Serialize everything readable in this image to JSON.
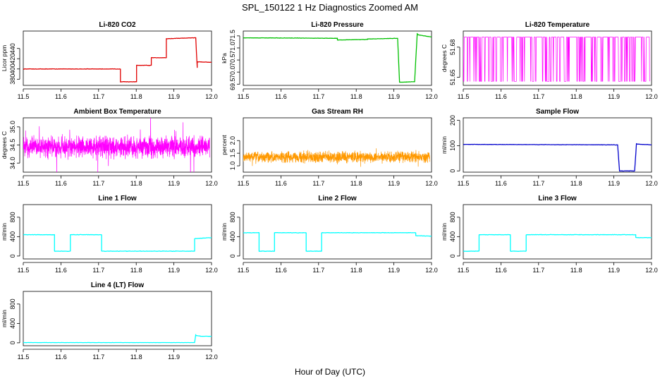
{
  "figure": {
    "title": "SPL_150122  1 Hz Diagnostics Zoomed AM",
    "xlabel": "Hour of Day (UTC)"
  },
  "chart_data": [
    {
      "type": "line",
      "title": "Li-820 CO2",
      "ylabel": "Licor ppm",
      "color": "#e00000",
      "xlim": [
        11.5,
        12.0
      ],
      "ylim": [
        368,
        474
      ],
      "xticks": [
        "11.5",
        "11.6",
        "11.7",
        "11.8",
        "11.9",
        "12.0"
      ],
      "yticks": [
        "380",
        "400",
        "420",
        "440"
      ],
      "noise": 0.6,
      "segments": [
        {
          "x": [
            11.5,
            11.758
          ],
          "y": [
            400,
            400
          ]
        },
        {
          "x": [
            11.758,
            11.801
          ],
          "y": [
            375,
            375
          ]
        },
        {
          "x": [
            11.801,
            11.84
          ],
          "y": [
            407,
            407
          ]
        },
        {
          "x": [
            11.84,
            11.88
          ],
          "y": [
            422,
            422
          ]
        },
        {
          "x": [
            11.88,
            11.958
          ],
          "y": [
            459,
            461
          ]
        },
        {
          "x": [
            11.958,
            11.962
          ],
          "y": [
            461,
            403
          ]
        },
        {
          "x": [
            11.962,
            12.0
          ],
          "y": [
            414,
            413
          ]
        }
      ]
    },
    {
      "type": "line",
      "title": "Li-820 Pressure",
      "ylabel": "kPa",
      "color": "#00c000",
      "xlim": [
        11.5,
        12.0
      ],
      "ylim": [
        69.45,
        71.7
      ],
      "xticks": [
        "11.5",
        "11.6",
        "11.7",
        "11.8",
        "11.9",
        "12.0"
      ],
      "yticks": [
        "69.5",
        "70.0",
        "70.5",
        "71.0",
        "71.5"
      ],
      "noise": 0.01,
      "segments": [
        {
          "x": [
            11.5,
            11.75
          ],
          "y": [
            71.42,
            71.4
          ]
        },
        {
          "x": [
            11.75,
            11.83
          ],
          "y": [
            71.33,
            71.35
          ]
        },
        {
          "x": [
            11.83,
            11.91
          ],
          "y": [
            71.37,
            71.4
          ]
        },
        {
          "x": [
            11.91,
            11.915
          ],
          "y": [
            71.4,
            69.6
          ]
        },
        {
          "x": [
            11.915,
            11.955
          ],
          "y": [
            69.58,
            69.6
          ]
        },
        {
          "x": [
            11.955,
            11.962
          ],
          "y": [
            69.6,
            71.6
          ]
        },
        {
          "x": [
            11.962,
            12.0
          ],
          "y": [
            71.55,
            71.45
          ]
        }
      ]
    },
    {
      "type": "line",
      "title": "Li-820 Temperature",
      "ylabel": "degrees C",
      "color": "#ff00ff",
      "xlim": [
        11.5,
        12.0
      ],
      "ylim": [
        51.642,
        51.696
      ],
      "xticks": [
        "11.5",
        "11.6",
        "11.7",
        "11.8",
        "11.9",
        "12.0"
      ],
      "yticks": [
        "51.65",
        "51.68"
      ],
      "levels": [
        51.646,
        51.69
      ],
      "range": [
        11.5,
        11.995
      ],
      "upper_share": 0.5
    },
    {
      "type": "line",
      "title": "Ambient Box Temperature",
      "ylabel": "degrees C",
      "color": "#ff00ff",
      "xlim": [
        11.5,
        12.0
      ],
      "ylim": [
        33.75,
        35.25
      ],
      "xticks": [
        "11.5",
        "11.6",
        "11.7",
        "11.8",
        "11.9",
        "12.0"
      ],
      "yticks": [
        "34.0",
        "34.5",
        "35.0"
      ],
      "band": {
        "center": 34.45,
        "spread": 0.4,
        "range": [
          11.5,
          11.995
        ]
      }
    },
    {
      "type": "line",
      "title": "Gas Stream RH",
      "ylabel": "percent",
      "color": "#ff9900",
      "xlim": [
        11.5,
        12.0
      ],
      "ylim": [
        0.75,
        2.9
      ],
      "xticks": [
        "11.5",
        "11.6",
        "11.7",
        "11.8",
        "11.9",
        "12.0"
      ],
      "yticks": [
        "1.0",
        "1.5",
        "2.0"
      ],
      "band": {
        "center": 1.35,
        "spread": 0.3,
        "range": [
          11.5,
          11.995
        ]
      }
    },
    {
      "type": "line",
      "title": "Sample Flow",
      "ylabel": "ml/min",
      "color": "#0000cc",
      "xlim": [
        11.5,
        12.0
      ],
      "ylim": [
        -5,
        210
      ],
      "xticks": [
        "11.5",
        "11.6",
        "11.7",
        "11.8",
        "11.9",
        "12.0"
      ],
      "yticks": [
        "0",
        "100",
        "200"
      ],
      "noise": 1,
      "segments": [
        {
          "x": [
            11.5,
            11.91
          ],
          "y": [
            105,
            103
          ]
        },
        {
          "x": [
            11.91,
            11.915
          ],
          "y": [
            103,
            0
          ]
        },
        {
          "x": [
            11.915,
            11.955
          ],
          "y": [
            0,
            0
          ]
        },
        {
          "x": [
            11.955,
            11.96
          ],
          "y": [
            0,
            108
          ]
        },
        {
          "x": [
            11.96,
            12.0
          ],
          "y": [
            106,
            103
          ]
        }
      ]
    },
    {
      "type": "line",
      "title": "Line 1 Flow",
      "ylabel": "ml/min",
      "color": "#00ffff",
      "xlim": [
        11.5,
        12.0
      ],
      "ylim": [
        -60,
        1060
      ],
      "xticks": [
        "11.5",
        "11.6",
        "11.7",
        "11.8",
        "11.9",
        "12.0"
      ],
      "yticks": [
        "0",
        "400",
        "800"
      ],
      "noise": 6,
      "segments": [
        {
          "x": [
            11.5,
            11.583
          ],
          "y": [
            440,
            440
          ]
        },
        {
          "x": [
            11.583,
            11.625
          ],
          "y": [
            100,
            100
          ]
        },
        {
          "x": [
            11.625,
            11.708
          ],
          "y": [
            440,
            440
          ]
        },
        {
          "x": [
            11.708,
            11.955
          ],
          "y": [
            100,
            100
          ]
        },
        {
          "x": [
            11.955,
            12.0
          ],
          "y": [
            360,
            380
          ]
        }
      ]
    },
    {
      "type": "line",
      "title": "Line 2 Flow",
      "ylabel": "ml/min",
      "color": "#00ffff",
      "xlim": [
        11.5,
        12.0
      ],
      "ylim": [
        -60,
        1060
      ],
      "xticks": [
        "11.5",
        "11.6",
        "11.7",
        "11.8",
        "11.9",
        "12.0"
      ],
      "yticks": [
        "0",
        "400",
        "800"
      ],
      "noise": 6,
      "segments": [
        {
          "x": [
            11.5,
            11.542
          ],
          "y": [
            480,
            480
          ]
        },
        {
          "x": [
            11.542,
            11.583
          ],
          "y": [
            100,
            100
          ]
        },
        {
          "x": [
            11.583,
            11.667
          ],
          "y": [
            480,
            480
          ]
        },
        {
          "x": [
            11.667,
            11.708
          ],
          "y": [
            100,
            100
          ]
        },
        {
          "x": [
            11.708,
            11.958
          ],
          "y": [
            480,
            480
          ]
        },
        {
          "x": [
            11.958,
            12.0
          ],
          "y": [
            420,
            410
          ]
        }
      ]
    },
    {
      "type": "line",
      "title": "Line 3 Flow",
      "ylabel": "ml/min",
      "color": "#00ffff",
      "xlim": [
        11.5,
        12.0
      ],
      "ylim": [
        -60,
        1060
      ],
      "xticks": [
        "11.5",
        "11.6",
        "11.7",
        "11.8",
        "11.9",
        "12.0"
      ],
      "yticks": [
        "0",
        "400",
        "800"
      ],
      "noise": 6,
      "segments": [
        {
          "x": [
            11.5,
            11.542
          ],
          "y": [
            100,
            100
          ]
        },
        {
          "x": [
            11.542,
            11.625
          ],
          "y": [
            440,
            440
          ]
        },
        {
          "x": [
            11.625,
            11.667
          ],
          "y": [
            100,
            100
          ]
        },
        {
          "x": [
            11.667,
            11.958
          ],
          "y": [
            440,
            440
          ]
        },
        {
          "x": [
            11.958,
            12.0
          ],
          "y": [
            380,
            380
          ]
        }
      ]
    },
    {
      "type": "line",
      "title": "Line 4 (LT) Flow",
      "ylabel": "ml/min",
      "color": "#00ffff",
      "xlim": [
        11.5,
        12.0
      ],
      "ylim": [
        -60,
        1060
      ],
      "xticks": [
        "11.5",
        "11.6",
        "11.7",
        "11.8",
        "11.9",
        "12.0"
      ],
      "yticks": [
        "0",
        "400",
        "800"
      ],
      "noise": 2,
      "segments": [
        {
          "x": [
            11.5,
            11.955
          ],
          "y": [
            5,
            5
          ]
        },
        {
          "x": [
            11.955,
            11.958
          ],
          "y": [
            5,
            170
          ]
        },
        {
          "x": [
            11.958,
            11.97
          ],
          "y": [
            150,
            140
          ]
        },
        {
          "x": [
            11.97,
            12.0
          ],
          "y": [
            135,
            135
          ]
        }
      ]
    }
  ]
}
